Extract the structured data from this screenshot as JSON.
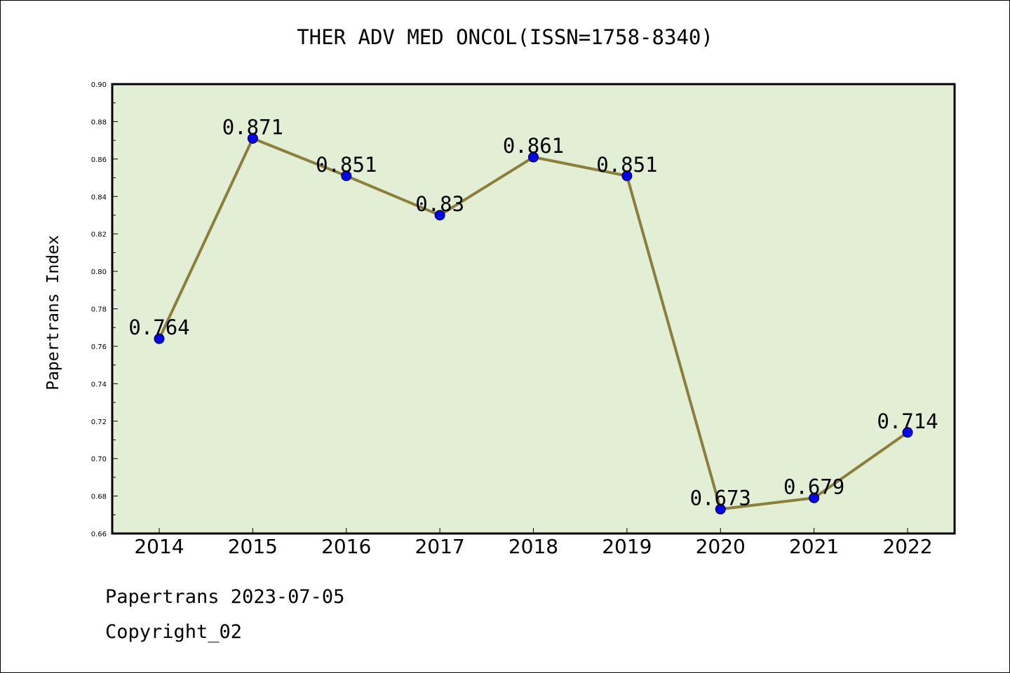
{
  "chart_data": {
    "type": "line",
    "title": "THER ADV MED ONCOL(ISSN=1758-8340)",
    "xlabel": "",
    "ylabel": "Papertrans Index",
    "categories": [
      "2014",
      "2015",
      "2016",
      "2017",
      "2018",
      "2019",
      "2020",
      "2021",
      "2022"
    ],
    "series": [
      {
        "values": [
          0.764,
          0.871,
          0.851,
          0.83,
          0.861,
          0.851,
          0.673,
          0.679,
          0.714
        ],
        "labels": [
          "0.764",
          "0.871",
          "0.851",
          "0.83",
          "0.861",
          "0.851",
          "0.673",
          "0.679",
          "0.714"
        ]
      }
    ],
    "ylim": [
      0.66,
      0.9
    ],
    "yticks": [
      "0.66",
      "0.68",
      "0.70",
      "0.72",
      "0.74",
      "0.76",
      "0.78",
      "0.80",
      "0.82",
      "0.84",
      "0.86",
      "0.88",
      "0.90"
    ],
    "grid": false,
    "legend": "none",
    "colors": {
      "plot_background": "#e2efd5",
      "line": "#8c7f3a",
      "marker": "#0000ff"
    }
  },
  "footer": {
    "line1": "Papertrans 2023-07-05",
    "line2": "Copyright_02"
  }
}
